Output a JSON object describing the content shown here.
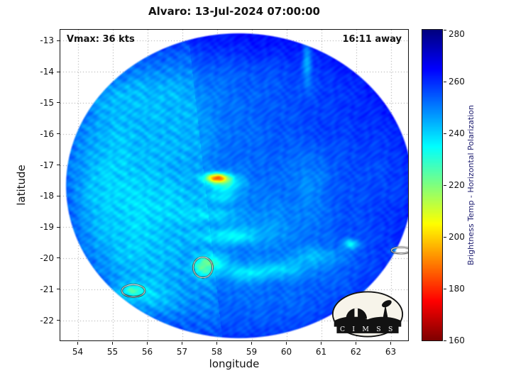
{
  "title": "Alvaro: 13-Jul-2024 07:00:00",
  "annotations": {
    "vmax_label": "Vmax: 36 kts",
    "time_label": "16:11 away"
  },
  "x_axis": {
    "label": "longitude",
    "min": 53.5,
    "max": 63.5,
    "ticks": [
      54,
      55,
      56,
      57,
      58,
      59,
      60,
      61,
      62,
      63
    ]
  },
  "y_axis": {
    "label": "latitude",
    "min": -22.65,
    "max": -12.65,
    "ticks": [
      -13,
      -14,
      -15,
      -16,
      -17,
      -18,
      -19,
      -20,
      -21,
      -22
    ]
  },
  "colorbar": {
    "label": "Brightness Temp - Horizontal Polarization",
    "min": 160,
    "max": 280,
    "ticks": [
      280,
      260,
      240,
      220,
      200,
      180,
      160
    ]
  },
  "logo": {
    "text": "C I M S S"
  },
  "chart_data": {
    "type": "heatmap",
    "title": "Alvaro: 13-Jul-2024 07:00:00",
    "storm_name": "Alvaro",
    "vmax_kts": 36,
    "time_to_obs": "16:11 away",
    "xlabel": "longitude",
    "ylabel": "latitude",
    "xlim": [
      53.5,
      63.5
    ],
    "ylim": [
      -22.65,
      -12.65
    ],
    "grid": true,
    "colormap": "jet-reversed",
    "value_label": "Brightness Temp - Horizontal Polarization",
    "value_range_K": [
      160,
      280
    ],
    "swath": {
      "center_lon": 58.64,
      "center_lat": -17.67,
      "radius_lon_deg": 5.0,
      "radius_lat_deg": 4.93,
      "background_temp_K": 252,
      "rim_darkening_K": 7
    },
    "seam": {
      "lon_at_lat_minus13": 57.2,
      "lon_slope_per_deg": 0.1,
      "left_side_delta_K": -2.5
    },
    "noise": {
      "blotch_amp_K": 2.2,
      "fine_amp_K": 0.8,
      "streak_amp_K": 1.8
    },
    "features": [
      {
        "lon": 55.2,
        "lat": -16.2,
        "rx": 1.7,
        "ry": 1.5,
        "d": -7
      },
      {
        "lon": 54.7,
        "lat": -17.9,
        "rx": 1.0,
        "ry": 1.3,
        "d": -6
      },
      {
        "lon": 55.7,
        "lat": -19.7,
        "rx": 1.5,
        "ry": 1.7,
        "d": -9
      },
      {
        "lon": 56.6,
        "lat": -18.1,
        "rx": 1.1,
        "ry": 0.9,
        "d": -6
      },
      {
        "lon": 55.9,
        "lat": -21.3,
        "rx": 1.1,
        "ry": 0.5,
        "d": -8
      },
      {
        "lon": 54.8,
        "lat": -14.7,
        "rx": 0.9,
        "ry": 0.7,
        "d": -6
      },
      {
        "lon": 56.3,
        "lat": -14.6,
        "rx": 1.2,
        "ry": 0.9,
        "d": -5
      },
      {
        "lon": 57.3,
        "lat": -16.0,
        "rx": 0.8,
        "ry": 1.2,
        "d": -4
      },
      {
        "lon": 58.0,
        "lat": -17.42,
        "rx": 0.32,
        "ry": 0.15,
        "d": -55
      },
      {
        "lon": 58.25,
        "lat": -17.6,
        "rx": 0.5,
        "ry": 0.28,
        "d": -20
      },
      {
        "lon": 58.1,
        "lat": -18.05,
        "rx": 0.55,
        "ry": 0.22,
        "d": -10
      },
      {
        "lon": 57.9,
        "lat": -18.6,
        "rx": 0.7,
        "ry": 0.25,
        "d": -9
      },
      {
        "lon": 58.35,
        "lat": -19.3,
        "rx": 0.85,
        "ry": 0.25,
        "d": -13
      },
      {
        "lon": 57.95,
        "lat": -20.15,
        "rx": 0.45,
        "ry": 0.3,
        "d": -15
      },
      {
        "lon": 58.85,
        "lat": -20.5,
        "rx": 0.7,
        "ry": 0.28,
        "d": -13
      },
      {
        "lon": 59.9,
        "lat": -20.35,
        "rx": 0.8,
        "ry": 0.28,
        "d": -11
      },
      {
        "lon": 60.9,
        "lat": -19.95,
        "rx": 0.7,
        "ry": 0.28,
        "d": -10
      },
      {
        "lon": 61.85,
        "lat": -19.55,
        "rx": 0.22,
        "ry": 0.16,
        "d": -19
      },
      {
        "lon": 57.6,
        "lat": -20.3,
        "rx": 0.28,
        "ry": 0.33,
        "d": -17
      },
      {
        "lon": 55.6,
        "lat": -21.05,
        "rx": 0.33,
        "ry": 0.2,
        "d": -15
      },
      {
        "lon": 63.3,
        "lat": -19.75,
        "rx": 0.28,
        "ry": 0.1,
        "d": -18
      },
      {
        "lon": 60.6,
        "lat": -13.6,
        "rx": 0.14,
        "ry": 0.8,
        "d": -14
      },
      {
        "lon": 60.7,
        "lat": -17.5,
        "rx": 0.5,
        "ry": 0.9,
        "d": -5
      },
      {
        "lon": 59.3,
        "lat": -19.0,
        "rx": 1.5,
        "ry": 0.8,
        "d": -5
      },
      {
        "lon": 61.8,
        "lat": -15.4,
        "rx": 2.2,
        "ry": 1.8,
        "d": 6
      },
      {
        "lon": 62.4,
        "lat": -18.8,
        "rx": 1.6,
        "ry": 1.5,
        "d": 4
      },
      {
        "lon": 59.3,
        "lat": -13.1,
        "rx": 2.4,
        "ry": 0.9,
        "d": 6
      }
    ],
    "contours": [
      {
        "lon": 55.6,
        "lat": -21.05,
        "rx": 0.33,
        "ry": 0.2
      },
      {
        "lon": 57.6,
        "lat": -20.3,
        "rx": 0.28,
        "ry": 0.33
      },
      {
        "lon": 63.3,
        "lat": -19.75,
        "rx": 0.28,
        "ry": 0.1
      }
    ]
  }
}
